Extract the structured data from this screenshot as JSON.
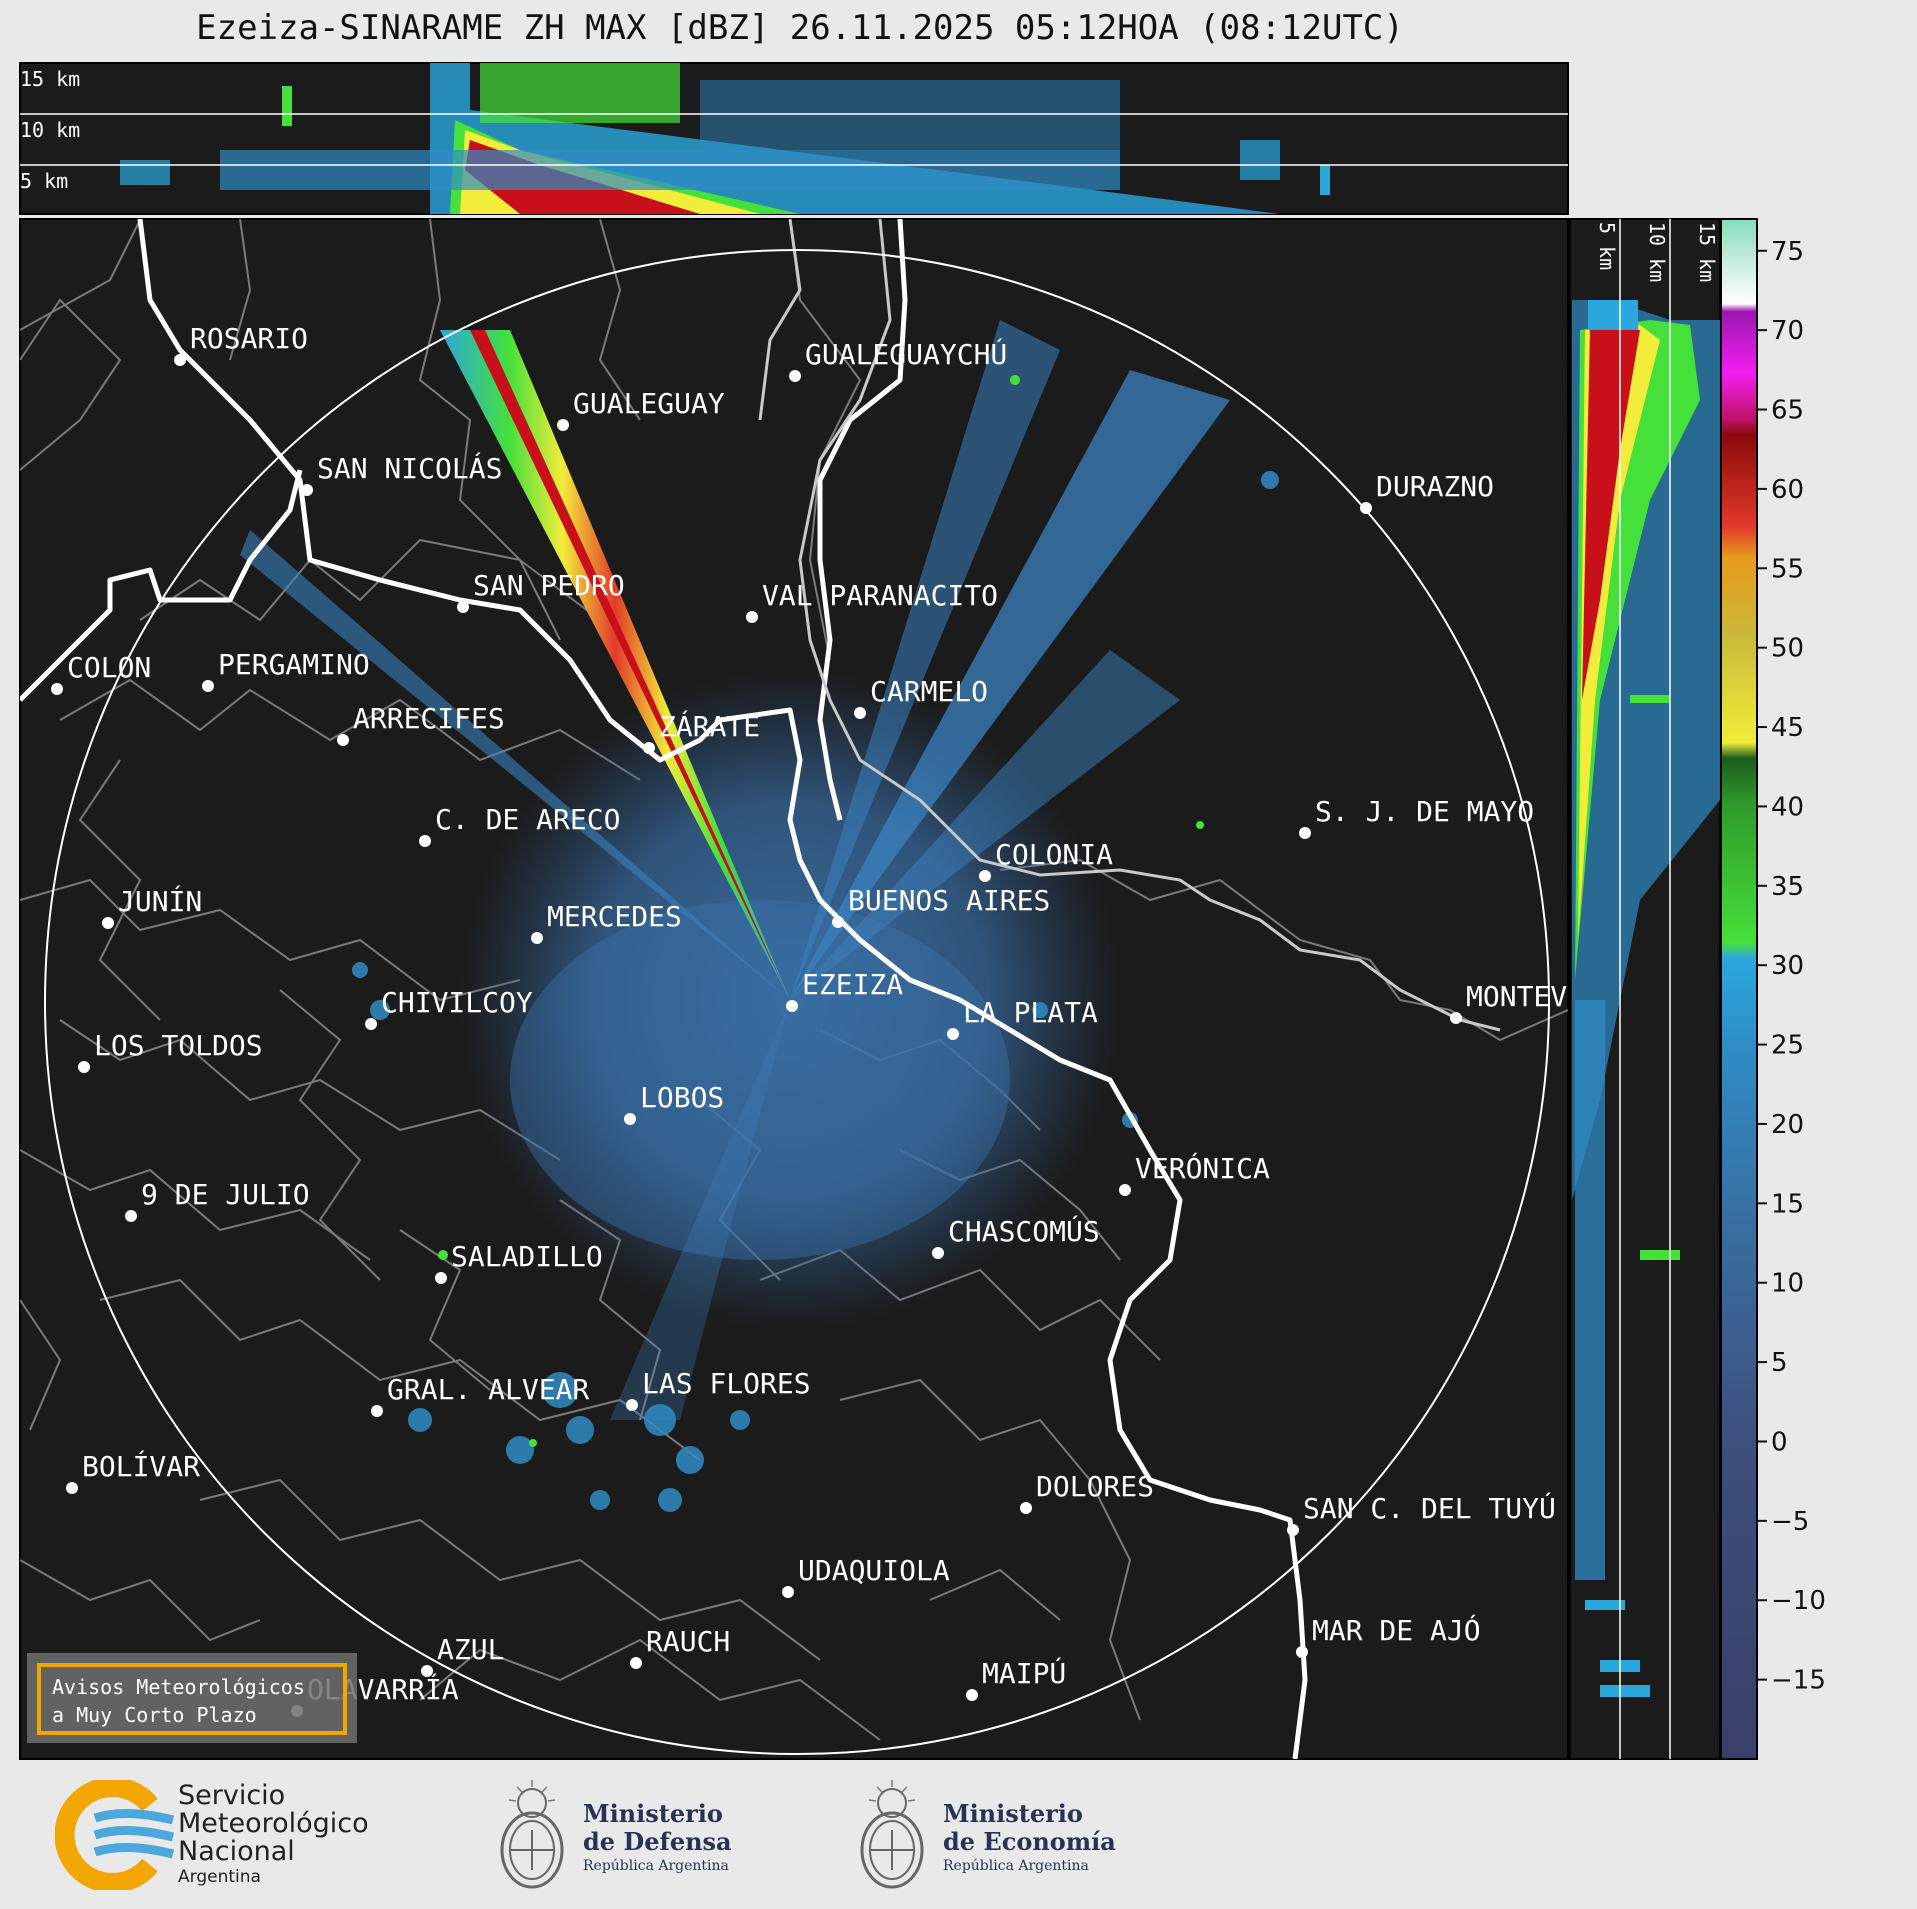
{
  "title": "Ezeiza-SINARAME ZH MAX [dBZ] 26.11.2025 05:12HOA (08:12UTC)",
  "top_panel": {
    "height_labels": [
      "15 km",
      "10 km",
      "5 km"
    ]
  },
  "side_panel": {
    "height_labels": [
      "5 km",
      "10 km",
      "15 km"
    ]
  },
  "cities": [
    {
      "name": "ROSARIO"
    },
    {
      "name": "GUALEGUAYCHÚ"
    },
    {
      "name": "GUALEGUAY"
    },
    {
      "name": "SAN NICOLÁS"
    },
    {
      "name": "DURAZNO"
    },
    {
      "name": "SAN PEDRO"
    },
    {
      "name": "VAL PARANACITO"
    },
    {
      "name": "COLON"
    },
    {
      "name": "PERGAMINO"
    },
    {
      "name": "CARMELO"
    },
    {
      "name": "ARRECIFES"
    },
    {
      "name": "ZÁRATE"
    },
    {
      "name": "S. J. DE MAYO"
    },
    {
      "name": "C. DE ARECO"
    },
    {
      "name": "COLONIA"
    },
    {
      "name": "JUNÍN"
    },
    {
      "name": "MERCEDES"
    },
    {
      "name": "BUENOS AIRES"
    },
    {
      "name": "MONTEV"
    },
    {
      "name": "EZEIZA"
    },
    {
      "name": "CHIVILCOY"
    },
    {
      "name": "LA PLATA"
    },
    {
      "name": "LOS TOLDOS"
    },
    {
      "name": "LOBOS"
    },
    {
      "name": "VERÓNICA"
    },
    {
      "name": "9 DE JULIO"
    },
    {
      "name": "CHASCOMÚS"
    },
    {
      "name": "SALADILLO"
    },
    {
      "name": "GRAL. ALVEAR"
    },
    {
      "name": "LAS FLORES"
    },
    {
      "name": "BOLÍVAR"
    },
    {
      "name": "DOLORES"
    },
    {
      "name": "SAN C. DEL TUYÚ"
    },
    {
      "name": "UDAQUIOLA"
    },
    {
      "name": "MAR DE AJÓ"
    },
    {
      "name": "AZUL"
    },
    {
      "name": "RAUCH"
    },
    {
      "name": "OLAVARRÍA"
    },
    {
      "name": "MAIPÚ"
    }
  ],
  "notice": {
    "line1": "Avisos Meteorológicos",
    "line2": "a Muy Corto Plazo",
    "border_color": "#f0a800"
  },
  "colorbar": {
    "ticks": [
      "75",
      "70",
      "65",
      "60",
      "55",
      "50",
      "45",
      "40",
      "35",
      "30",
      "25",
      "20",
      "15",
      "10",
      "5",
      "0",
      "−5",
      "−10",
      "−15"
    ],
    "range": [
      -20,
      77
    ]
  },
  "logos": {
    "smn": {
      "line1": "Servicio",
      "line2": "Meteorológico",
      "line3": "Nacional",
      "line4": "Argentina"
    },
    "defensa": {
      "line1": "Ministerio",
      "line2": "de Defensa",
      "line3": "República Argentina"
    },
    "economia": {
      "line1": "Ministerio",
      "line2": "de Economía",
      "line3": "República Argentina"
    }
  },
  "colors": {
    "map_bg": "#1b1b1b",
    "coast": "#ffffff",
    "boundary": "#7a7a7a",
    "echo": "#3a77b0"
  }
}
